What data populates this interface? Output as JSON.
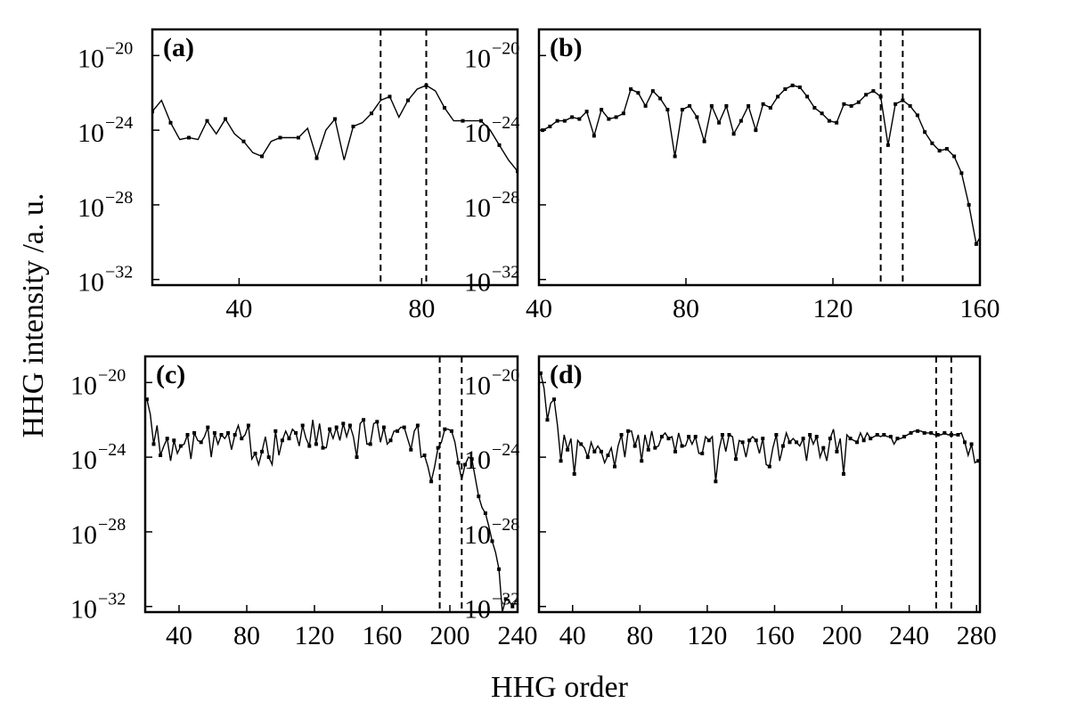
{
  "figure": {
    "xlabel": "HHG order",
    "ylabel": "HHG intensity /a. u."
  },
  "chart_data": [
    {
      "type": "line",
      "panel": "(a)",
      "xlim": [
        21,
        101
      ],
      "ylim": [
        -32.3,
        -18.6
      ],
      "yscale": "log",
      "xticks": [
        40,
        80
      ],
      "yticks": [
        {
          "base": "10",
          "exp": "−20",
          "value": -20
        },
        {
          "base": "10",
          "exp": "−24",
          "value": -24
        },
        {
          "base": "10",
          "exp": "−28",
          "value": -28
        },
        {
          "base": "10",
          "exp": "−32",
          "value": -32
        }
      ],
      "cutoff_lines": [
        71,
        81
      ],
      "marker_every": 2,
      "x_start": 21,
      "x_step": 2,
      "log10_intensity": [
        -23.0,
        -22.4,
        -23.6,
        -24.5,
        -24.4,
        -24.5,
        -23.5,
        -24.2,
        -23.4,
        -24.2,
        -24.6,
        -25.2,
        -25.4,
        -24.6,
        -24.4,
        -24.4,
        -24.4,
        -23.9,
        -25.5,
        -24.0,
        -23.4,
        -25.6,
        -23.8,
        -23.6,
        -23.1,
        -22.4,
        -22.2,
        -23.3,
        -22.4,
        -21.8,
        -21.6,
        -21.9,
        -22.8,
        -23.5,
        -23.5,
        -23.5,
        -23.5,
        -24.0,
        -24.8,
        -25.6,
        -26.2,
        -26.8,
        -27.0,
        -27.2,
        -28.0,
        -28.9,
        -29.8,
        -30.7,
        -31.6,
        -32.5
      ]
    },
    {
      "type": "line",
      "panel": "(b)",
      "xlim": [
        40,
        160
      ],
      "ylim": [
        -32.3,
        -18.6
      ],
      "yscale": "log",
      "xticks": [
        40,
        80,
        120,
        160
      ],
      "yticks": [
        {
          "base": "10",
          "exp": "−20",
          "value": -20
        },
        {
          "base": "10",
          "exp": "−24",
          "value": -24
        },
        {
          "base": "10",
          "exp": "−28",
          "value": -28
        },
        {
          "base": "10",
          "exp": "−32",
          "value": -32
        }
      ],
      "cutoff_lines": [
        133,
        139
      ],
      "marker_every": 1,
      "x_start": 41,
      "x_step": 2,
      "log10_intensity": [
        -24.0,
        -23.8,
        -23.5,
        -23.5,
        -23.3,
        -23.4,
        -23.0,
        -24.3,
        -22.9,
        -23.4,
        -23.3,
        -23.1,
        -21.8,
        -22.0,
        -22.7,
        -21.9,
        -22.3,
        -22.9,
        -25.4,
        -22.9,
        -22.7,
        -23.3,
        -24.6,
        -22.7,
        -23.6,
        -22.7,
        -24.2,
        -23.5,
        -22.7,
        -24.0,
        -22.6,
        -22.8,
        -22.2,
        -21.8,
        -21.6,
        -21.7,
        -22.2,
        -22.8,
        -23.1,
        -23.5,
        -23.6,
        -22.6,
        -22.7,
        -22.5,
        -22.1,
        -21.9,
        -22.2,
        -24.8,
        -22.6,
        -22.4,
        -22.7,
        -23.2,
        -24.1,
        -24.7,
        -25.1,
        -25.0,
        -25.4,
        -26.3,
        -28.0,
        -30.1,
        -29.4,
        -29.5,
        -30.0,
        -30.3
      ]
    },
    {
      "type": "line",
      "panel": "(c)",
      "xlim": [
        20,
        240
      ],
      "ylim": [
        -32.3,
        -18.6
      ],
      "yscale": "log",
      "xticks": [
        40,
        80,
        120,
        160,
        200,
        240
      ],
      "yticks": [
        {
          "base": "10",
          "exp": "−20",
          "value": -20
        },
        {
          "base": "10",
          "exp": "−24",
          "value": -24
        },
        {
          "base": "10",
          "exp": "−28",
          "value": -28
        },
        {
          "base": "10",
          "exp": "−32",
          "value": -32
        }
      ],
      "cutoff_lines": [
        194,
        207
      ],
      "marker_every": 2,
      "x_start": 21,
      "x_step": 2,
      "log10_intensity": [
        -20.9,
        -21.7,
        -23.3,
        -22.3,
        -23.9,
        -23.4,
        -23.0,
        -24.2,
        -23.1,
        -23.8,
        -23.4,
        -23.3,
        -22.8,
        -24.1,
        -22.7,
        -23.1,
        -23.2,
        -22.9,
        -22.4,
        -24.0,
        -22.7,
        -23.3,
        -22.8,
        -23.0,
        -22.7,
        -23.6,
        -22.8,
        -22.3,
        -23.0,
        -22.8,
        -22.3,
        -24.1,
        -23.8,
        -24.4,
        -23.7,
        -22.9,
        -24.0,
        -24.4,
        -22.6,
        -23.9,
        -23.1,
        -22.6,
        -23.0,
        -22.5,
        -22.7,
        -23.4,
        -22.3,
        -23.0,
        -23.4,
        -22.0,
        -23.3,
        -22.2,
        -23.5,
        -23.5,
        -22.5,
        -23.0,
        -22.4,
        -23.1,
        -22.2,
        -22.9,
        -22.3,
        -22.9,
        -24.0,
        -22.2,
        -22.0,
        -23.3,
        -23.3,
        -22.2,
        -22.1,
        -23.2,
        -22.4,
        -23.3,
        -23.1,
        -22.6,
        -22.6,
        -22.4,
        -22.4,
        -23.0,
        -23.6,
        -22.6,
        -22.3,
        -24.0,
        -23.9,
        -24.5,
        -25.3,
        -24.5,
        -23.5,
        -23.2,
        -22.5,
        -22.5,
        -22.6,
        -23.2,
        -24.3,
        -25.2,
        -24.4,
        -24.0,
        -24.1,
        -25.1,
        -26.1,
        -26.7,
        -27.0,
        -27.7,
        -28.5,
        -29.1,
        -30.0,
        -32.3,
        -31.6,
        -31.7,
        -32.0,
        -31.7,
        -31.8,
        -32.0,
        -32.0,
        -32.0
      ]
    },
    {
      "type": "line",
      "panel": "(d)",
      "xlim": [
        20,
        282
      ],
      "ylim": [
        -32.3,
        -18.6
      ],
      "yscale": "log",
      "xticks": [
        40,
        80,
        120,
        160,
        200,
        240,
        280
      ],
      "yticks": [
        {
          "base": "10",
          "exp": "−20",
          "value": -20
        },
        {
          "base": "10",
          "exp": "−24",
          "value": -24
        },
        {
          "base": "10",
          "exp": "−28",
          "value": -28
        },
        {
          "base": "10",
          "exp": "−32",
          "value": -32
        }
      ],
      "cutoff_lines": [
        256,
        265
      ],
      "marker_every": 2,
      "x_start": 21,
      "x_step": 2,
      "log10_intensity": [
        -19.5,
        -20.3,
        -22.0,
        -21.1,
        -20.9,
        -22.3,
        -24.2,
        -22.8,
        -23.6,
        -23.0,
        -24.9,
        -23.1,
        -23.3,
        -23.5,
        -24.0,
        -23.2,
        -23.7,
        -23.4,
        -23.7,
        -24.3,
        -23.9,
        -23.5,
        -24.5,
        -23.4,
        -22.8,
        -24.0,
        -22.6,
        -22.6,
        -23.4,
        -22.8,
        -24.2,
        -22.8,
        -23.6,
        -22.6,
        -23.5,
        -23.4,
        -22.9,
        -22.7,
        -23.0,
        -22.9,
        -23.7,
        -22.7,
        -23.4,
        -23.4,
        -22.9,
        -23.3,
        -22.9,
        -23.8,
        -23.8,
        -22.9,
        -23.1,
        -22.9,
        -25.3,
        -23.6,
        -22.8,
        -23.7,
        -22.8,
        -22.9,
        -24.1,
        -23.1,
        -23.2,
        -24.0,
        -23.1,
        -22.9,
        -23.1,
        -23.8,
        -23.0,
        -24.4,
        -24.5,
        -23.5,
        -22.8,
        -24.2,
        -23.4,
        -22.7,
        -23.2,
        -23.0,
        -23.2,
        -23.4,
        -23.0,
        -24.2,
        -22.8,
        -23.3,
        -22.9,
        -24.0,
        -23.5,
        -24.2,
        -23.0,
        -22.5,
        -23.7,
        -23.0,
        -24.9,
        -22.8,
        -23.0,
        -23.1,
        -23.2,
        -22.7,
        -23.1,
        -22.7,
        -23.0,
        -22.9,
        -22.8,
        -22.9,
        -22.8,
        -22.9,
        -22.9,
        -23.3,
        -23.0,
        -23.0,
        -22.9,
        -22.8,
        -22.7,
        -22.6,
        -22.6,
        -22.6,
        -22.7,
        -22.7,
        -22.7,
        -22.8,
        -22.8,
        -22.8,
        -22.7,
        -22.8,
        -22.8,
        -22.8,
        -22.8,
        -22.7,
        -23.2,
        -23.9,
        -23.3,
        -24.3,
        -24.2,
        -24.4,
        -25.0,
        -25.6,
        -25.9,
        -26.1,
        -26.4,
        -26.6,
        -27.2,
        -28.0,
        -29.8,
        -31.5,
        -32.6
      ]
    }
  ]
}
